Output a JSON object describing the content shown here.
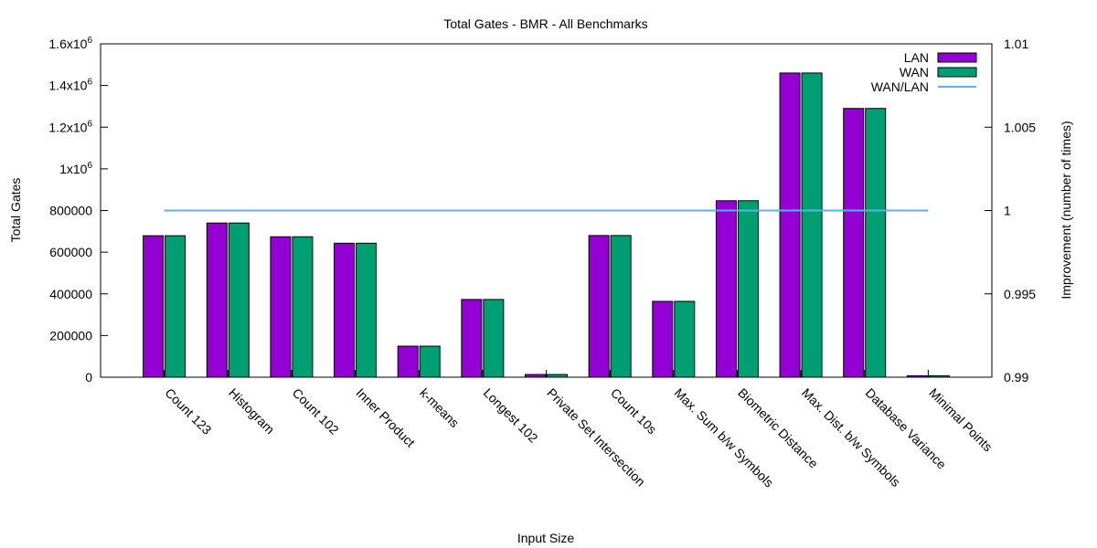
{
  "chart_data": {
    "type": "bar",
    "title": "Total Gates - BMR - All Benchmarks",
    "xlabel": "Input Size",
    "ylabel": "Total Gates",
    "y2label": "Improvement (number of times)",
    "ylim": [
      0,
      1600000
    ],
    "y2lim": [
      0.99,
      1.01
    ],
    "yticks": [
      {
        "value": 0,
        "label": "0"
      },
      {
        "value": 200000,
        "label": "200000"
      },
      {
        "value": 400000,
        "label": "400000"
      },
      {
        "value": 600000,
        "label": "600000"
      },
      {
        "value": 800000,
        "label": "800000"
      },
      {
        "value": 1000000,
        "label": "1x10",
        "sup": "6"
      },
      {
        "value": 1200000,
        "label": "1.2x10",
        "sup": "6"
      },
      {
        "value": 1400000,
        "label": "1.4x10",
        "sup": "6"
      },
      {
        "value": 1600000,
        "label": "1.6x10",
        "sup": "6"
      }
    ],
    "y2ticks": [
      {
        "value": 0.99,
        "label": "0.99"
      },
      {
        "value": 0.995,
        "label": "0.995"
      },
      {
        "value": 1.0,
        "label": "1"
      },
      {
        "value": 1.005,
        "label": "1.005"
      },
      {
        "value": 1.01,
        "label": "1.01"
      }
    ],
    "categories": [
      "Count 123",
      "Histogram",
      "Count 102",
      "Inner Product",
      "k-means",
      "Longest 102",
      "Private Set Intersection",
      "Count 10s",
      "Max. Sum b/w Symbols",
      "Biometric Distance",
      "Max. Dist. b/w Symbols",
      "Database Variance",
      "Minimal Points"
    ],
    "series": [
      {
        "name": "LAN",
        "color": "#9400d3",
        "values": [
          679000,
          740000,
          674000,
          643000,
          149000,
          373000,
          13000,
          680000,
          364000,
          847000,
          1460000,
          1290000,
          7000
        ]
      },
      {
        "name": "WAN",
        "color": "#009e73",
        "values": [
          679000,
          740000,
          674000,
          643000,
          149000,
          373000,
          13000,
          680000,
          364000,
          847000,
          1460000,
          1290000,
          7000
        ]
      }
    ],
    "line_series": {
      "name": "WAN/LAN",
      "color": "#56b4e9",
      "axis": "y2",
      "values": [
        1,
        1,
        1,
        1,
        1,
        1,
        1,
        1,
        1,
        1,
        1,
        1,
        1
      ]
    },
    "legend_position": "top-right",
    "grid": false
  }
}
